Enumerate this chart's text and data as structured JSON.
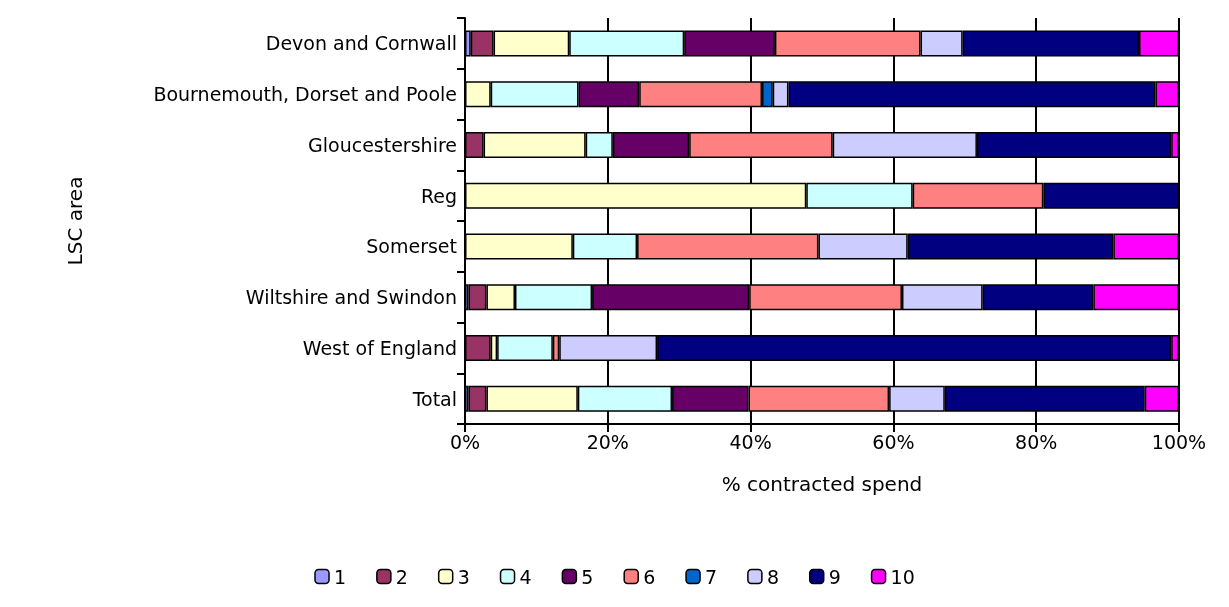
{
  "chart_data": {
    "type": "bar",
    "orientation": "horizontal",
    "stacked": true,
    "xlabel": "% contracted spend",
    "ylabel": "LSC area",
    "categories": [
      "Devon and Cornwall",
      "Bournemouth, Dorset and Poole",
      "Gloucestershire",
      "Reg",
      "Somerset",
      "Wiltshire and Swindon",
      "West of England",
      "Total"
    ],
    "series": [
      {
        "name": "1",
        "color": "#9999ff",
        "values": [
          0.8,
          null,
          null,
          null,
          null,
          0.5,
          null,
          0.5
        ]
      },
      {
        "name": "2",
        "color": "#993366",
        "values": [
          3.2,
          null,
          2.6,
          null,
          null,
          2.5,
          3.6,
          2.5
        ]
      },
      {
        "name": "3",
        "color": "#ffffcc",
        "values": [
          10.6,
          3.6,
          14.3,
          47.8,
          15.1,
          4.0,
          0.9,
          12.8
        ]
      },
      {
        "name": "4",
        "color": "#ccffff",
        "values": [
          16.1,
          12.3,
          3.8,
          14.9,
          9.0,
          10.8,
          7.8,
          13.2
        ]
      },
      {
        "name": "5",
        "color": "#660066",
        "values": [
          12.7,
          8.5,
          10.7,
          null,
          null,
          22.0,
          null,
          10.7
        ]
      },
      {
        "name": "6",
        "color": "#ff8080",
        "values": [
          20.4,
          17.2,
          20.1,
          18.3,
          25.4,
          21.4,
          0.9,
          19.7
        ]
      },
      {
        "name": "7",
        "color": "#0066cc",
        "values": [
          null,
          1.5,
          null,
          null,
          null,
          null,
          null,
          null
        ]
      },
      {
        "name": "8",
        "color": "#ccccff",
        "values": [
          5.9,
          2.2,
          20.2,
          null,
          12.5,
          11.3,
          13.7,
          7.8
        ]
      },
      {
        "name": "9",
        "color": "#000080",
        "values": [
          24.7,
          51.4,
          27.2,
          19.0,
          28.8,
          15.5,
          72.0,
          28.0
        ]
      },
      {
        "name": "10",
        "color": "#ff00ff",
        "values": [
          5.6,
          3.3,
          1.1,
          null,
          9.2,
          12.0,
          1.1,
          4.8
        ]
      }
    ],
    "xlim": [
      0,
      100
    ],
    "xticks": [
      {
        "value": 0,
        "label": "0%"
      },
      {
        "value": 20,
        "label": "20%"
      },
      {
        "value": 40,
        "label": "40%"
      },
      {
        "value": 60,
        "label": "60%"
      },
      {
        "value": 80,
        "label": "80%"
      },
      {
        "value": 100,
        "label": "100%"
      }
    ],
    "grid": "x",
    "legend": "bottom"
  }
}
